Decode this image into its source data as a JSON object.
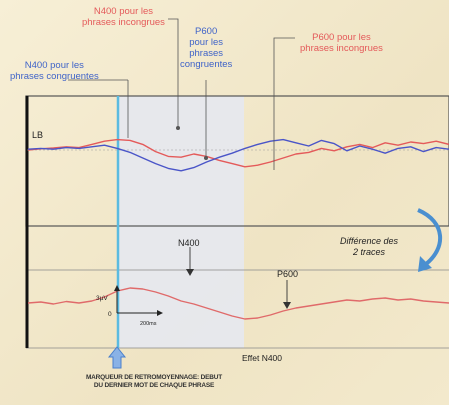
{
  "labels": {
    "n400_incongruent": [
      "N400 pour les",
      "phrases incongrues"
    ],
    "p600_congruent": [
      "P600",
      "pour les",
      "phrases",
      "congruentes"
    ],
    "p600_incongruent": [
      "P600 pour les",
      "phrases incongrues"
    ],
    "n400_congruent": [
      "N400 pour les",
      "phrases congruentes"
    ],
    "difference": [
      "Différence des",
      "2 traces"
    ],
    "n400_peak": "N400",
    "p600_peak": "P600",
    "effect": "Effet N400",
    "lb": "LB",
    "scale_y": "3µV",
    "scale_zero": "0",
    "scale_x": "200ms",
    "footer": [
      "MARQUEUR DE RETROMOYENNAGE: DEBUT",
      "DU DERNIER MOT DE CHAQUE PHRASE"
    ]
  },
  "colors": {
    "incongruent": "#e45a5a",
    "congruent": "#4a55c8",
    "difference": "#e06a6a",
    "marker": "#5bbbe0",
    "window": "#e6e8ef",
    "arrow": "#4a8fd0"
  },
  "chart_data": [
    {
      "type": "line",
      "title": "",
      "series": [
        {
          "name": "N400 pour les phrases incongrues",
          "color": "#e45a5a",
          "values": [
            0.0,
            0.3,
            0.5,
            0.8,
            0.6,
            1.4,
            2.2,
            2.6,
            2.4,
            1.4,
            -0.4,
            -1.6,
            -1.8,
            -1.0,
            -1.6,
            -2.6,
            -3.4,
            -4.2,
            -3.8,
            -3.0,
            -2.0,
            -1.0,
            -0.6,
            0.4,
            -0.2,
            0.8,
            1.4,
            0.6,
            1.8,
            1.2,
            2.0,
            1.6,
            2.2,
            1.4
          ]
        },
        {
          "name": "N400 pour les phrases congruentes",
          "color": "#4a55c8",
          "values": [
            0.2,
            0.4,
            0.2,
            0.6,
            0.4,
            0.8,
            1.2,
            0.4,
            -0.6,
            -2.0,
            -3.4,
            -4.6,
            -5.2,
            -4.4,
            -3.0,
            -1.8,
            -0.8,
            0.4,
            1.4,
            2.2,
            2.6,
            1.8,
            1.0,
            2.4,
            1.6,
            -0.2,
            1.0,
            0.2,
            -0.8,
            0.4,
            0.8,
            -0.4,
            0.6,
            0.2
          ]
        }
      ]
    },
    {
      "type": "line",
      "title": "",
      "series": [
        {
          "name": "Différence des 2 traces",
          "color": "#e06a6a",
          "values": [
            0.0,
            0.2,
            -0.2,
            0.3,
            0.0,
            0.4,
            1.2,
            2.4,
            3.0,
            2.8,
            2.2,
            1.4,
            0.4,
            -0.2,
            -1.0,
            -1.8,
            -2.6,
            -3.2,
            -3.0,
            -2.4,
            -1.6,
            -1.0,
            -0.6,
            -0.2,
            0.2,
            0.6,
            0.4,
            0.8,
            1.0,
            0.6,
            0.8,
            0.4,
            0.2,
            0.0
          ]
        }
      ]
    }
  ]
}
